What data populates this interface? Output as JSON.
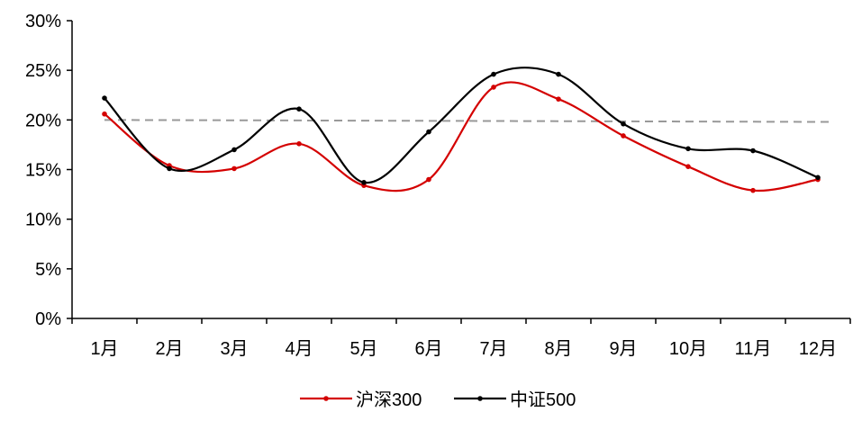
{
  "chart_data": {
    "type": "line",
    "categories": [
      "1月",
      "2月",
      "3月",
      "4月",
      "5月",
      "6月",
      "7月",
      "8月",
      "9月",
      "10月",
      "11月",
      "12月"
    ],
    "series": [
      {
        "name": "沪深300",
        "color": "#d40000",
        "values": [
          0.206,
          0.154,
          0.151,
          0.176,
          0.134,
          0.14,
          0.233,
          0.221,
          0.184,
          0.153,
          0.129,
          0.14
        ]
      },
      {
        "name": "中证500",
        "color": "#000000",
        "values": [
          0.222,
          0.151,
          0.17,
          0.211,
          0.137,
          0.188,
          0.246,
          0.246,
          0.196,
          0.171,
          0.169,
          0.142
        ]
      }
    ],
    "reference_line": {
      "start": 0.2,
      "end": 0.198,
      "color": "#999999",
      "style": "dashed"
    },
    "yticks": [
      "0%",
      "5%",
      "10%",
      "15%",
      "20%",
      "25%",
      "30%"
    ],
    "ylim": [
      0,
      0.3
    ],
    "legend_position": "bottom-center",
    "grid": false
  }
}
